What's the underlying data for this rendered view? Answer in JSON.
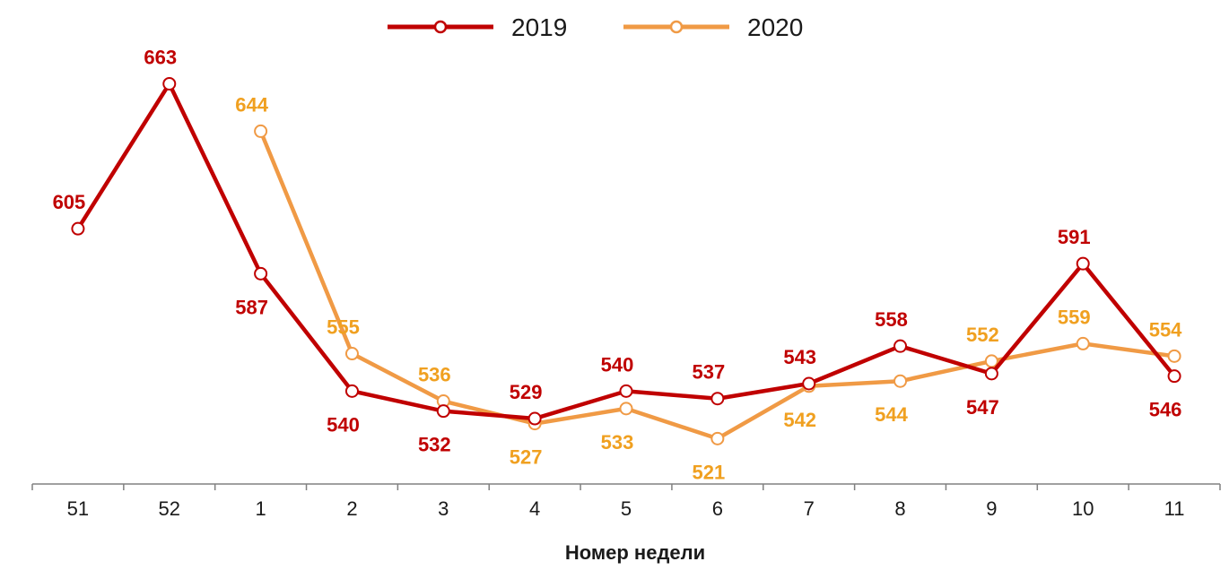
{
  "chart_data": {
    "type": "line",
    "title": "",
    "xlabel": "Номер недели",
    "ylabel": "",
    "categories": [
      "51",
      "52",
      "1",
      "2",
      "3",
      "4",
      "5",
      "6",
      "7",
      "8",
      "9",
      "10",
      "11"
    ],
    "series": [
      {
        "name": "2019",
        "color": "#C00000",
        "values": [
          605,
          663,
          587,
          540,
          532,
          529,
          540,
          537,
          543,
          558,
          547,
          591,
          546
        ],
        "label_position": [
          "above",
          "above",
          "below",
          "below",
          "below",
          "above",
          "above",
          "above",
          "above",
          "above",
          "below",
          "above",
          "below"
        ]
      },
      {
        "name": "2020",
        "color": "#F09A45",
        "label_color": "#F0A020",
        "values": [
          null,
          null,
          644,
          555,
          536,
          527,
          533,
          521,
          542,
          544,
          552,
          559,
          554
        ],
        "label_position": [
          null,
          null,
          "above",
          "above",
          "above",
          "below",
          "below",
          "below",
          "below",
          "below",
          "above",
          "above",
          "above"
        ]
      }
    ],
    "ylim": [
      510,
      675
    ],
    "grid": false,
    "legend_position": "top-center"
  }
}
